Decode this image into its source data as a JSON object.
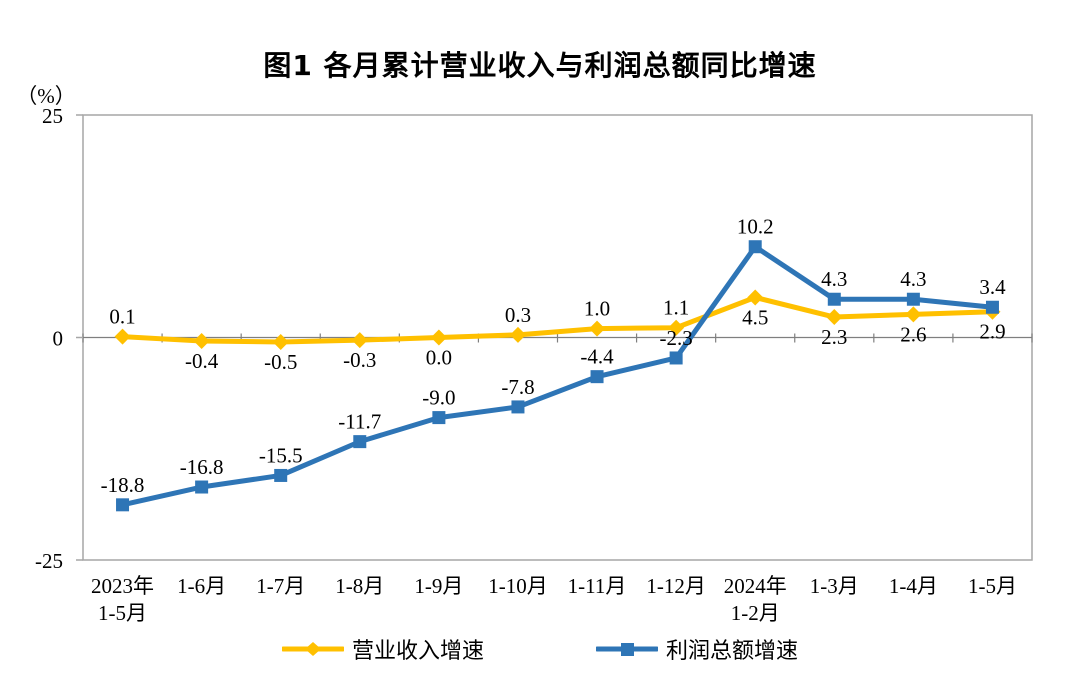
{
  "chart_data": {
    "type": "line",
    "title": "图1  各月累计营业收入与利润总额同比增速",
    "unit_label": "（%）",
    "ylim": [
      -25,
      25
    ],
    "yticks": [
      {
        "label": "25",
        "value": 25
      },
      {
        "label": "0",
        "value": 0
      },
      {
        "label": "-25",
        "value": -25
      }
    ],
    "grid": false,
    "legend_position": "bottom",
    "colors": {
      "axis_border": "#a6a6a6",
      "zero_line": "#7f7f7f",
      "text": "#000000",
      "revenue": "#ffc000",
      "profit": "#2e75b6"
    },
    "categories": [
      {
        "lines": [
          "2023年",
          "1-5月"
        ]
      },
      {
        "lines": [
          "1-6月"
        ]
      },
      {
        "lines": [
          "1-7月"
        ]
      },
      {
        "lines": [
          "1-8月"
        ]
      },
      {
        "lines": [
          "1-9月"
        ]
      },
      {
        "lines": [
          "1-10月"
        ]
      },
      {
        "lines": [
          "1-11月"
        ]
      },
      {
        "lines": [
          "1-12月"
        ]
      },
      {
        "lines": [
          "2024年",
          "1-2月"
        ]
      },
      {
        "lines": [
          "1-3月"
        ]
      },
      {
        "lines": [
          "1-4月"
        ]
      },
      {
        "lines": [
          "1-5月"
        ]
      }
    ],
    "series": [
      {
        "name": "营业收入增速",
        "color": "#ffc000",
        "marker": "diamond",
        "values": [
          0.1,
          -0.4,
          -0.5,
          -0.3,
          0.0,
          0.3,
          1.0,
          1.1,
          4.5,
          2.3,
          2.6,
          2.9
        ],
        "labels": [
          "0.1",
          "-0.4",
          "-0.5",
          "-0.3",
          "0.0",
          "0.3",
          "1.0",
          "1.1",
          "4.5",
          "2.3",
          "2.6",
          "2.9"
        ],
        "label_pos": [
          "above",
          "below",
          "below",
          "below",
          "below",
          "above",
          "above",
          "above",
          "below",
          "below",
          "below",
          "below"
        ]
      },
      {
        "name": "利润总额增速",
        "color": "#2e75b6",
        "marker": "square",
        "values": [
          -18.8,
          -16.8,
          -15.5,
          -11.7,
          -9.0,
          -7.8,
          -4.4,
          -2.3,
          10.2,
          4.3,
          4.3,
          3.4
        ],
        "labels": [
          "-18.8",
          "-16.8",
          "-15.5",
          "-11.7",
          "-9.0",
          "-7.8",
          "-4.4",
          "-2.3",
          "10.2",
          "4.3",
          "4.3",
          "3.4"
        ],
        "label_pos": [
          "above",
          "above",
          "above",
          "above",
          "above",
          "above",
          "above",
          "above",
          "above",
          "above",
          "above",
          "above"
        ]
      }
    ]
  }
}
